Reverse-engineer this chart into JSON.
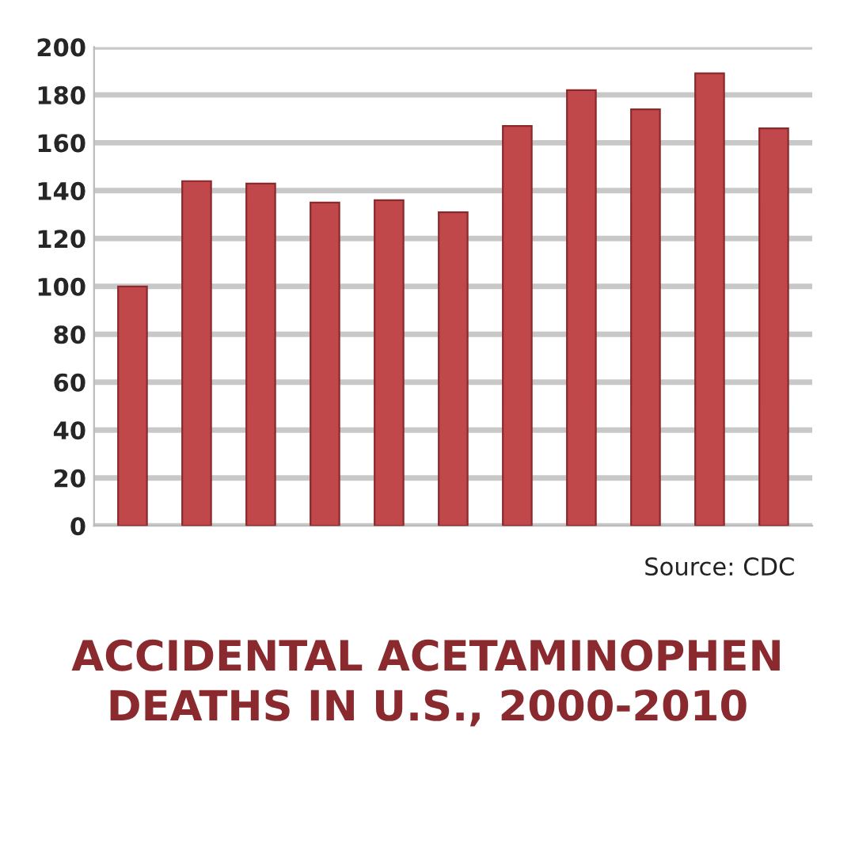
{
  "chart_data": {
    "type": "bar",
    "title": "ACCIDENTAL ACETAMINOPHEN\nDEATHS IN U.S., 2000-2010",
    "categories": [
      null,
      null,
      null,
      null,
      null,
      null,
      null,
      null,
      null,
      null,
      null
    ],
    "values": [
      100,
      144,
      143,
      135,
      136,
      131,
      167,
      182,
      174,
      189,
      166
    ],
    "color": "#c0474a",
    "ylim": [
      0,
      200
    ],
    "yticks": [
      0,
      20,
      40,
      60,
      80,
      100,
      120,
      140,
      160,
      180,
      200
    ],
    "grid": "y",
    "annotations": [
      "Source: CDC"
    ]
  }
}
